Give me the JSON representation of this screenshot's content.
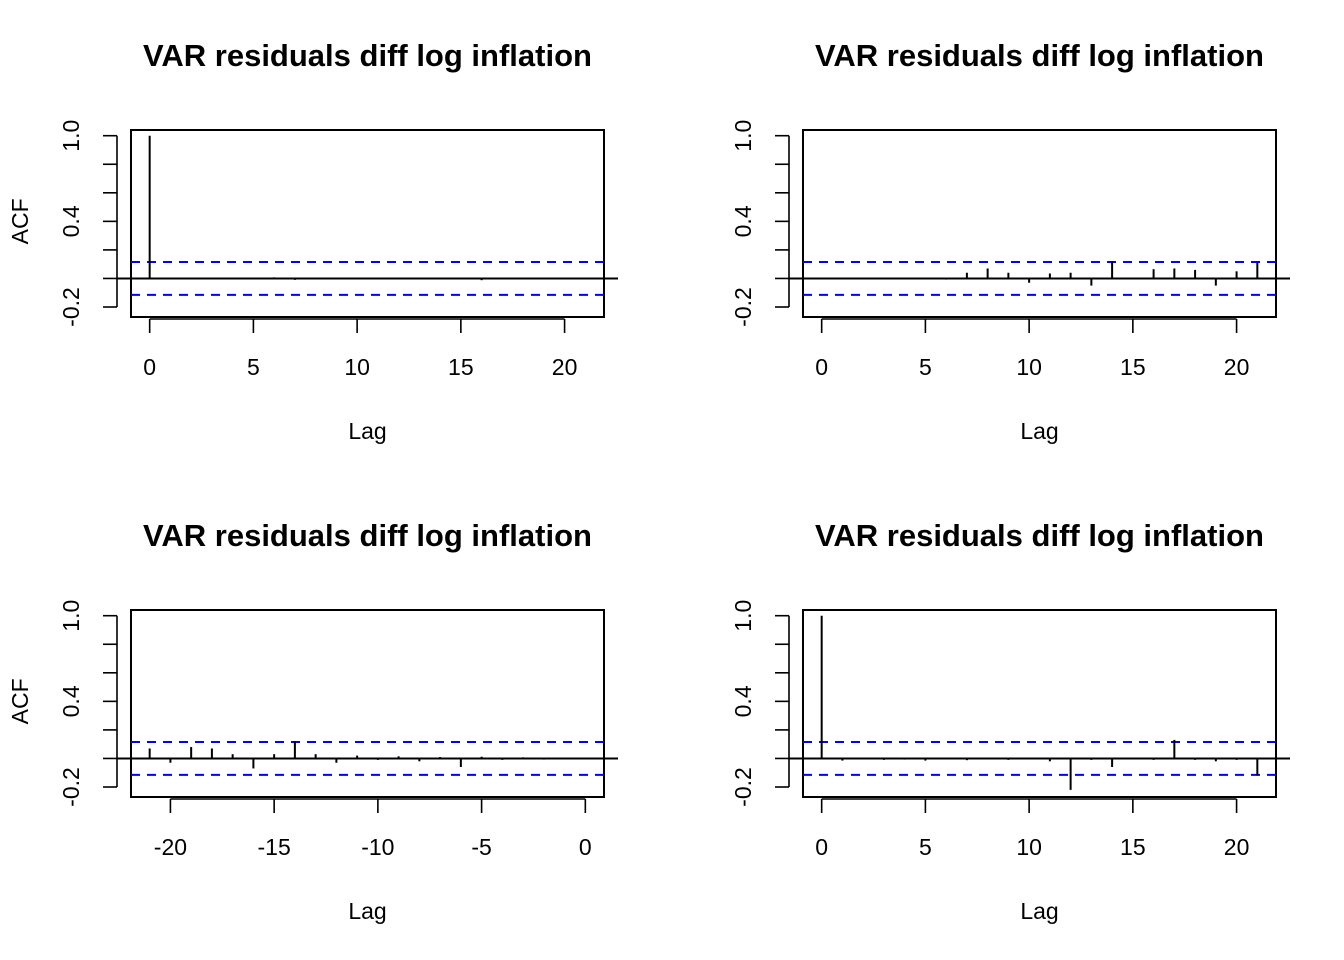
{
  "chart_data": [
    {
      "type": "bar",
      "title": "VAR residuals diff log inflation",
      "xlabel": "Lag",
      "ylabel": "ACF",
      "xlim": [
        -0.9,
        21.9
      ],
      "ylim": [
        -0.27,
        1.04
      ],
      "x_ticks": [
        0,
        5,
        10,
        15,
        20
      ],
      "x_tick_labels": [
        "0",
        "5",
        "10",
        "15",
        "20"
      ],
      "y_ticks": [
        -0.2,
        0.0,
        0.2,
        0.4,
        0.6,
        0.8,
        1.0
      ],
      "y_tick_labels": [
        "-0.2",
        "",
        "",
        "0.4",
        "",
        "",
        "1.0"
      ],
      "ci": 0.115,
      "ci_color": "#0000ff",
      "lags": [
        0,
        1,
        2,
        3,
        4,
        5,
        6,
        7,
        8,
        9,
        10,
        11,
        12,
        13,
        14,
        15,
        16,
        17,
        18,
        19,
        20,
        21
      ],
      "values": [
        1.0,
        0.004,
        -0.005,
        0.006,
        -0.005,
        0.003,
        0.008,
        -0.01,
        0.005,
        0.004,
        -0.004,
        0.003,
        0.005,
        -0.006,
        0.004,
        0.002,
        -0.012,
        0.004,
        0.006,
        -0.004,
        0.005,
        -0.006
      ]
    },
    {
      "type": "bar",
      "title": "VAR residuals diff log inflation",
      "xlabel": "Lag",
      "ylabel": "",
      "xlim": [
        -0.9,
        21.9
      ],
      "ylim": [
        -0.27,
        1.04
      ],
      "x_ticks": [
        0,
        5,
        10,
        15,
        20
      ],
      "x_tick_labels": [
        "0",
        "5",
        "10",
        "15",
        "20"
      ],
      "y_ticks": [
        -0.2,
        0.0,
        0.2,
        0.4,
        0.6,
        0.8,
        1.0
      ],
      "y_tick_labels": [
        "-0.2",
        "",
        "",
        "0.4",
        "",
        "",
        "1.0"
      ],
      "ci": 0.115,
      "ci_color": "#0000ff",
      "lags": [
        0,
        1,
        2,
        3,
        4,
        5,
        6,
        7,
        8,
        9,
        10,
        11,
        12,
        13,
        14,
        15,
        16,
        17,
        18,
        19,
        20,
        21
      ],
      "values": [
        0.005,
        0.006,
        -0.004,
        0.006,
        -0.005,
        0.004,
        -0.008,
        0.04,
        0.07,
        0.04,
        -0.03,
        0.035,
        0.04,
        -0.05,
        0.12,
        0.004,
        0.065,
        0.07,
        0.06,
        -0.05,
        0.05,
        0.11
      ]
    },
    {
      "type": "bar",
      "title": "VAR residuals diff log inflation",
      "xlabel": "Lag",
      "ylabel": "ACF",
      "xlim": [
        -21.9,
        0.9
      ],
      "ylim": [
        -0.27,
        1.04
      ],
      "x_ticks": [
        -20,
        -15,
        -10,
        -5,
        0
      ],
      "x_tick_labels": [
        "-20",
        "-15",
        "-10",
        "-5",
        "0"
      ],
      "y_ticks": [
        -0.2,
        0.0,
        0.2,
        0.4,
        0.6,
        0.8,
        1.0
      ],
      "y_tick_labels": [
        "-0.2",
        "",
        "",
        "0.4",
        "",
        "",
        "1.0"
      ],
      "ci": 0.115,
      "ci_color": "#0000ff",
      "lags": [
        -21,
        -20,
        -19,
        -18,
        -17,
        -16,
        -15,
        -14,
        -13,
        -12,
        -11,
        -10,
        -9,
        -8,
        -7,
        -6,
        -5,
        -4,
        -3,
        -2,
        -1,
        0
      ],
      "values": [
        0.07,
        -0.03,
        0.08,
        0.07,
        0.03,
        -0.07,
        0.03,
        0.12,
        0.03,
        -0.03,
        0.02,
        -0.01,
        0.015,
        -0.02,
        0.01,
        -0.06,
        0.012,
        -0.01,
        0.008,
        -0.008,
        0.006,
        0.005
      ]
    },
    {
      "type": "bar",
      "title": "VAR residuals diff log inflation",
      "xlabel": "Lag",
      "ylabel": "",
      "xlim": [
        -0.9,
        21.9
      ],
      "ylim": [
        -0.27,
        1.04
      ],
      "x_ticks": [
        0,
        5,
        10,
        15,
        20
      ],
      "x_tick_labels": [
        "0",
        "5",
        "10",
        "15",
        "20"
      ],
      "y_ticks": [
        -0.2,
        0.0,
        0.2,
        0.4,
        0.6,
        0.8,
        1.0
      ],
      "y_tick_labels": [
        "-0.2",
        "",
        "",
        "0.4",
        "",
        "",
        "1.0"
      ],
      "ci": 0.115,
      "ci_color": "#0000ff",
      "lags": [
        0,
        1,
        2,
        3,
        4,
        5,
        6,
        7,
        8,
        9,
        10,
        11,
        12,
        13,
        14,
        15,
        16,
        17,
        18,
        19,
        20,
        21
      ],
      "values": [
        1.0,
        -0.015,
        -0.005,
        -0.01,
        -0.008,
        -0.015,
        -0.006,
        -0.012,
        -0.005,
        -0.01,
        -0.005,
        -0.02,
        -0.22,
        -0.01,
        -0.06,
        -0.005,
        -0.01,
        0.13,
        -0.01,
        -0.02,
        -0.01,
        -0.12
      ]
    }
  ]
}
